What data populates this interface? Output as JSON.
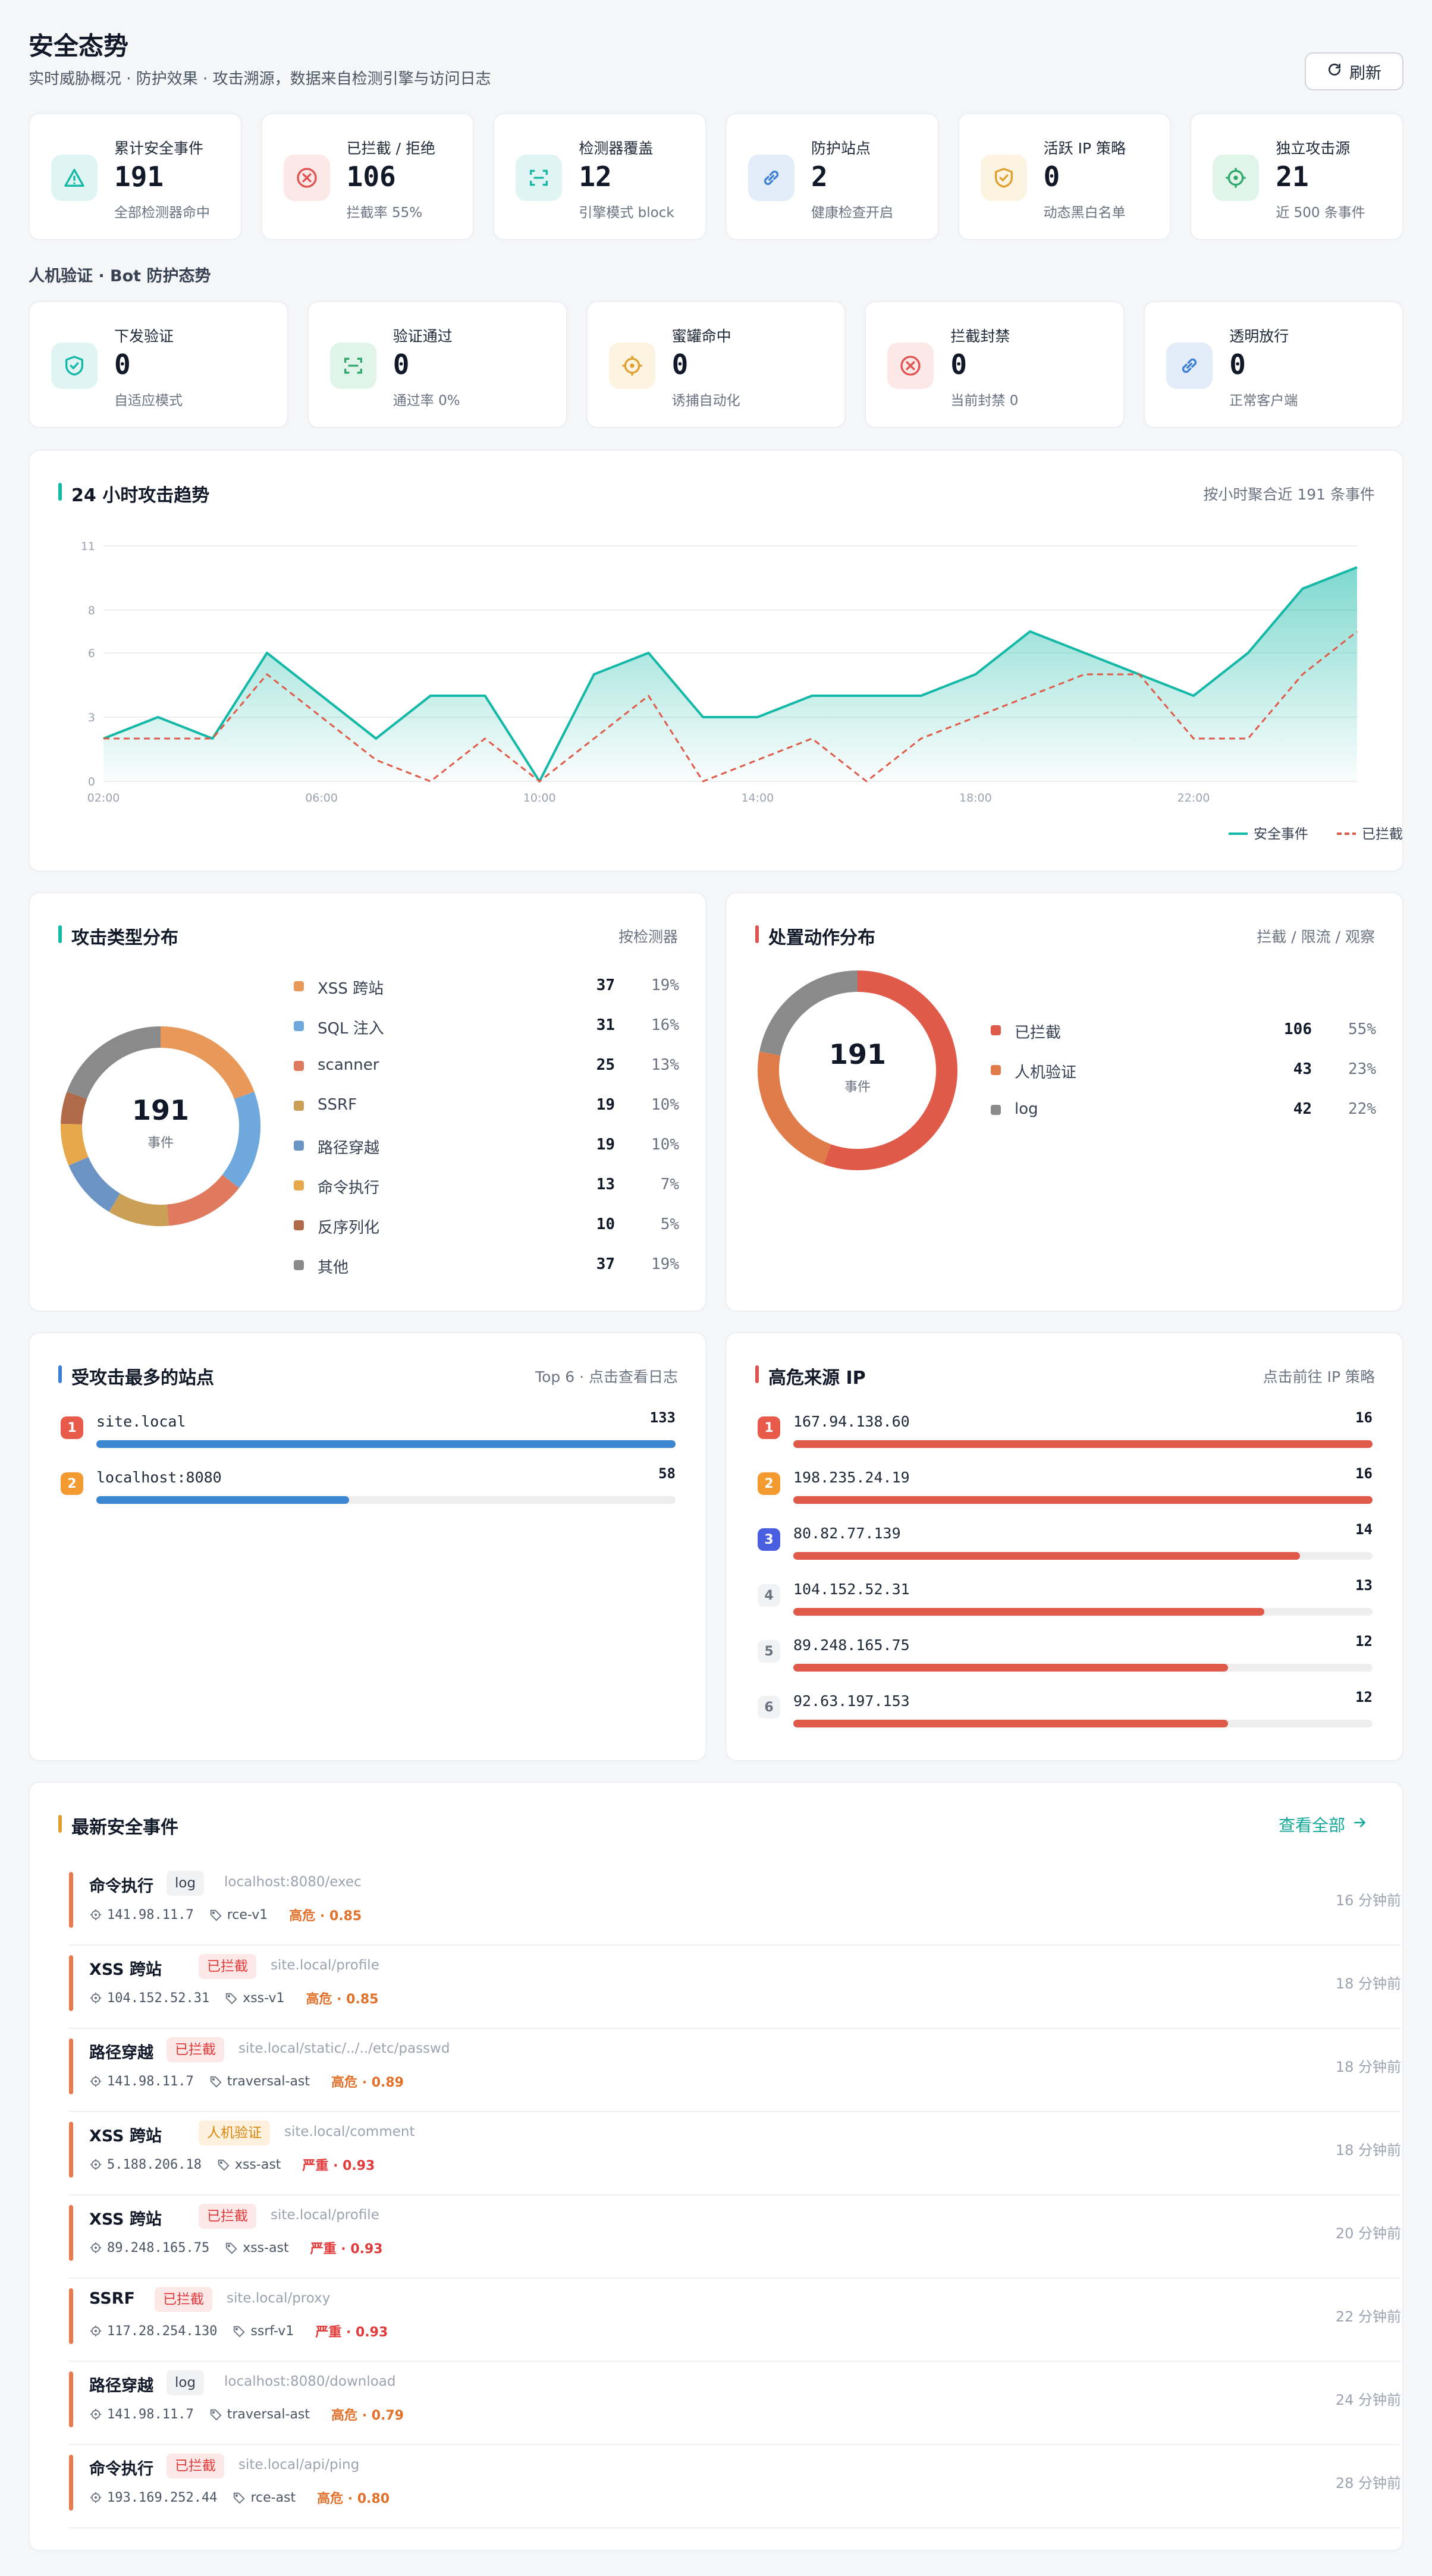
{
  "header": {
    "title": "安全态势",
    "subtitle": "实时威胁概况 · 防护效果 · 攻击溯源，数据来自检测引擎与访问日志",
    "refresh_label": "刷新"
  },
  "stats": [
    {
      "label": "累计安全事件",
      "value": "191",
      "sub": "全部检测器命中",
      "icon": "warning-triangle-icon",
      "color": "#14b8a6",
      "bg": "#e0f5f3"
    },
    {
      "label": "已拦截 / 拒绝",
      "value": "106",
      "sub": "拦截率 55%",
      "icon": "circle-x-icon",
      "color": "#e05252",
      "bg": "#fde8e8"
    },
    {
      "label": "检测器覆盖",
      "value": "12",
      "sub": "引擎模式 block",
      "icon": "scan-icon",
      "color": "#14b8a6",
      "bg": "#e0f5f3"
    },
    {
      "label": "防护站点",
      "value": "2",
      "sub": "健康检查开启",
      "icon": "link-icon",
      "color": "#3b7fd4",
      "bg": "#e3edf9"
    },
    {
      "label": "活跃 IP 策略",
      "value": "0",
      "sub": "动态黑白名单",
      "icon": "shield-check-icon",
      "color": "#e0a030",
      "bg": "#fdf3e1"
    },
    {
      "label": "独立攻击源",
      "value": "21",
      "sub": "近 500 条事件",
      "icon": "crosshair-icon",
      "color": "#2ea86b",
      "bg": "#e1f4ea"
    }
  ],
  "bot_section_label": "人机验证 · Bot 防护态势",
  "bot_stats": [
    {
      "label": "下发验证",
      "value": "0",
      "sub": "自适应模式",
      "icon": "shield-check-icon",
      "color": "#14b8a6",
      "bg": "#e0f5f3"
    },
    {
      "label": "验证通过",
      "value": "0",
      "sub": "通过率 0%",
      "icon": "scan-icon",
      "color": "#2ea86b",
      "bg": "#e1f4ea"
    },
    {
      "label": "蜜罐命中",
      "value": "0",
      "sub": "诱捕自动化",
      "icon": "crosshair-icon",
      "color": "#e0a030",
      "bg": "#fdf3e1"
    },
    {
      "label": "拦截封禁",
      "value": "0",
      "sub": "当前封禁 0",
      "icon": "circle-x-icon",
      "color": "#e05252",
      "bg": "#fde8e8"
    },
    {
      "label": "透明放行",
      "value": "0",
      "sub": "正常客户端",
      "icon": "link-icon",
      "color": "#3b7fd4",
      "bg": "#e3edf9"
    }
  ],
  "trend": {
    "title": "24 小时攻击趋势",
    "note": "按小时聚合近 191 条事件"
  },
  "chart_data": {
    "type": "line",
    "x": [
      "02:00",
      "03:00",
      "04:00",
      "05:00",
      "06:00",
      "07:00",
      "08:00",
      "09:00",
      "10:00",
      "11:00",
      "12:00",
      "13:00",
      "14:00",
      "15:00",
      "16:00",
      "17:00",
      "18:00",
      "19:00",
      "20:00",
      "21:00",
      "22:00",
      "23:00",
      "00:00",
      "01:00"
    ],
    "x_ticks": [
      "02:00",
      "06:00",
      "10:00",
      "14:00",
      "18:00",
      "22:00"
    ],
    "y_ticks": [
      "0",
      "3",
      "6",
      "8",
      "11"
    ],
    "ylim": [
      0,
      11
    ],
    "series": [
      {
        "name": "安全事件",
        "color": "#14b8a6",
        "style": "solid",
        "values": [
          2,
          3,
          2,
          6,
          4,
          2,
          4,
          4,
          0,
          5,
          6,
          3,
          3,
          4,
          4,
          4,
          5,
          7,
          6,
          5,
          4,
          6,
          9,
          10
        ]
      },
      {
        "name": "已拦截",
        "color": "#e05a4a",
        "style": "dashed",
        "values": [
          2,
          2,
          2,
          5,
          3,
          1,
          0,
          2,
          0,
          2,
          4,
          0,
          1,
          2,
          0,
          2,
          3,
          4,
          5,
          5,
          2,
          2,
          5,
          7
        ]
      }
    ],
    "grid": true,
    "legend": "bottom-right"
  },
  "attack_types": {
    "title": "攻击类型分布",
    "note": "按检测器",
    "center_value": "191",
    "center_unit": "事件",
    "items": [
      {
        "name": "XSS 跨站",
        "count": 37,
        "pct": "19%",
        "color": "#e8995a"
      },
      {
        "name": "SQL 注入",
        "count": 31,
        "pct": "16%",
        "color": "#6fa8dc"
      },
      {
        "name": "scanner",
        "count": 25,
        "pct": "13%",
        "color": "#e07a5f"
      },
      {
        "name": "SSRF",
        "count": 19,
        "pct": "10%",
        "color": "#c9a055"
      },
      {
        "name": "路径穿越",
        "count": 19,
        "pct": "10%",
        "color": "#6b93c4"
      },
      {
        "name": "命令执行",
        "count": 13,
        "pct": "7%",
        "color": "#e6a84a"
      },
      {
        "name": "反序列化",
        "count": 10,
        "pct": "5%",
        "color": "#b06a4a"
      },
      {
        "name": "其他",
        "count": 37,
        "pct": "19%",
        "color": "#8a8a8a"
      }
    ]
  },
  "actions": {
    "title": "处置动作分布",
    "note": "拦截 / 限流 / 观察",
    "center_value": "191",
    "center_unit": "事件",
    "items": [
      {
        "name": "已拦截",
        "count": 106,
        "pct": "55%",
        "color": "#e05a4a"
      },
      {
        "name": "人机验证",
        "count": 43,
        "pct": "23%",
        "color": "#e07b4a"
      },
      {
        "name": "log",
        "count": 42,
        "pct": "22%",
        "color": "#8a8a8a"
      }
    ]
  },
  "sites": {
    "title": "受攻击最多的站点",
    "note": "Top 6 · 点击查看日志",
    "max": 133,
    "items": [
      {
        "rank": "1",
        "name": "site.local",
        "value": 133
      },
      {
        "rank": "2",
        "name": "localhost:8080",
        "value": 58
      }
    ]
  },
  "ips": {
    "title": "高危来源 IP",
    "note": "点击前往 IP 策略",
    "max": 16,
    "items": [
      {
        "rank": "1",
        "name": "167.94.138.60",
        "value": 16
      },
      {
        "rank": "2",
        "name": "198.235.24.19",
        "value": 16
      },
      {
        "rank": "3",
        "name": "80.82.77.139",
        "value": 14
      },
      {
        "rank": "4",
        "name": "104.152.52.31",
        "value": 13
      },
      {
        "rank": "5",
        "name": "89.248.165.75",
        "value": 12
      },
      {
        "rank": "6",
        "name": "92.63.197.153",
        "value": 12
      }
    ]
  },
  "events": {
    "title": "最新安全事件",
    "view_all": "查看全部",
    "items": [
      {
        "type": "命令执行",
        "tag": "log",
        "path": "localhost:8080/exec",
        "ip": "141.98.11.7",
        "rule": "rce-v1",
        "severity": "高危 · 0.85",
        "sev_color": "#e0702a",
        "time": "16 分钟前"
      },
      {
        "type": "XSS 跨站",
        "tag": "已拦截",
        "path": "site.local/profile",
        "ip": "104.152.52.31",
        "rule": "xss-v1",
        "severity": "高危 · 0.85",
        "sev_color": "#e0702a",
        "time": "18 分钟前"
      },
      {
        "type": "路径穿越",
        "tag": "已拦截",
        "path": "site.local/static/../../etc/passwd",
        "ip": "141.98.11.7",
        "rule": "traversal-ast",
        "severity": "高危 · 0.89",
        "sev_color": "#e0702a",
        "time": "18 分钟前"
      },
      {
        "type": "XSS 跨站",
        "tag": "人机验证",
        "path": "site.local/comment",
        "ip": "5.188.206.18",
        "rule": "xss-ast",
        "severity": "严重 · 0.93",
        "sev_color": "#e03a3a",
        "time": "18 分钟前"
      },
      {
        "type": "XSS 跨站",
        "tag": "已拦截",
        "path": "site.local/profile",
        "ip": "89.248.165.75",
        "rule": "xss-ast",
        "severity": "严重 · 0.93",
        "sev_color": "#e03a3a",
        "time": "20 分钟前"
      },
      {
        "type": "SSRF",
        "tag": "已拦截",
        "path": "site.local/proxy",
        "ip": "117.28.254.130",
        "rule": "ssrf-v1",
        "severity": "严重 · 0.93",
        "sev_color": "#e03a3a",
        "time": "22 分钟前"
      },
      {
        "type": "路径穿越",
        "tag": "log",
        "path": "localhost:8080/download",
        "ip": "141.98.11.7",
        "rule": "traversal-ast",
        "severity": "高危 · 0.79",
        "sev_color": "#e0702a",
        "time": "24 分钟前"
      },
      {
        "type": "命令执行",
        "tag": "已拦截",
        "path": "site.local/api/ping",
        "ip": "193.169.252.44",
        "rule": "rce-ast",
        "severity": "高危 · 0.80",
        "sev_color": "#e0702a",
        "time": "28 分钟前"
      }
    ]
  }
}
